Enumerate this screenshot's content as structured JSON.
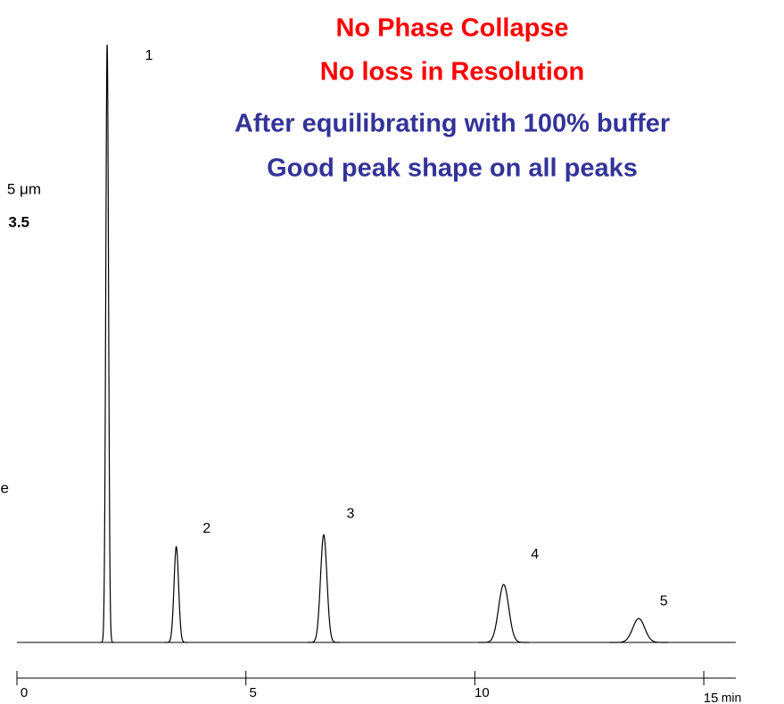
{
  "chart_data": {
    "type": "chromatogram",
    "title": [
      "No Phase Collapse",
      "No loss in Resolution"
    ],
    "subtitle": [
      "After equilibrating with 100% buffer",
      "Good peak shape on all peaks"
    ],
    "title_color": "#ff0000",
    "subtitle_color": "#333399",
    "side_texts": [
      "5 μm",
      "3.5",
      "e"
    ],
    "peaks": [
      {
        "label": "1",
        "time": 1.97,
        "height": 100,
        "width": 0.03
      },
      {
        "label": "2",
        "time": 3.48,
        "height": 16,
        "width": 0.05
      },
      {
        "label": "3",
        "time": 6.7,
        "height": 18,
        "width": 0.07
      },
      {
        "label": "4",
        "time": 10.63,
        "height": 9.7,
        "width": 0.11
      },
      {
        "label": "5",
        "time": 13.58,
        "height": 4,
        "width": 0.13
      }
    ],
    "color": "#000000",
    "xlabel": "min",
    "xlim": [
      0,
      15.7
    ],
    "xticks": [
      0,
      5,
      10,
      15
    ],
    "ylim": [
      0,
      100
    ]
  }
}
